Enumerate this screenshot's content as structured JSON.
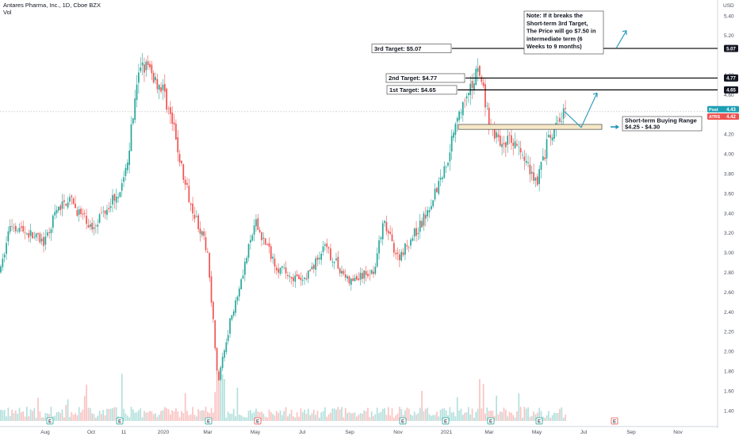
{
  "header": {
    "symbol_line": "Antares Pharma, Inc., 1D, Cboe BZX",
    "volume_label": "Vol",
    "currency": "USD"
  },
  "colors": {
    "up": "#26a69a",
    "down": "#ef5350",
    "line": "#000000",
    "accent": "#2196b8",
    "box_fill": "#f6e7c6",
    "post_tag": "#1e9fb4",
    "atrs_tag": "#ef5350"
  },
  "chart_data": {
    "type": "candlestick",
    "ylim": [
      1.33,
      5.42
    ],
    "y_ticks": [
      "5.40",
      "5.20",
      "5.07",
      "4.80",
      "4.77",
      "4.65",
      "4.60",
      "4.43",
      "4.42",
      "4.20",
      "4.00",
      "3.80",
      "3.60",
      "3.40",
      "3.20",
      "3.00",
      "2.80",
      "2.60",
      "2.40",
      "2.20",
      "2.00",
      "1.80",
      "1.60",
      "1.40"
    ],
    "x_ticks": [
      "Aug",
      "Oct",
      "11",
      "2020",
      "Mar",
      "May",
      "Jul",
      "Sep",
      "Nov",
      "2021",
      "Mar",
      "May",
      "Jul",
      "Sep",
      "Nov"
    ],
    "price_keypoints": [
      {
        "month": "Jul 2019",
        "price": 2.82
      },
      {
        "month": "Jul 2019",
        "price": 3.3
      },
      {
        "month": "Aug 2019",
        "price": 3.1
      },
      {
        "month": "Aug 2019",
        "price": 3.4
      },
      {
        "month": "Sep 2019",
        "price": 3.55
      },
      {
        "month": "Oct 2019",
        "price": 3.25
      },
      {
        "month": "Nov 2019",
        "price": 3.7
      },
      {
        "month": "Dec 2019",
        "price": 4.95
      },
      {
        "month": "Jan 2020",
        "price": 4.65
      },
      {
        "month": "Jan 2020",
        "price": 4.25
      },
      {
        "month": "Feb 2020",
        "price": 3.7
      },
      {
        "month": "Mar 2020",
        "price": 3.0
      },
      {
        "month": "Mar 2020",
        "price": 1.68
      },
      {
        "month": "Apr 2020",
        "price": 2.3
      },
      {
        "month": "May 2020",
        "price": 3.3
      },
      {
        "month": "Jun 2020",
        "price": 2.85
      },
      {
        "month": "Jul 2020",
        "price": 2.7
      },
      {
        "month": "Aug 2020",
        "price": 3.05
      },
      {
        "month": "Sep 2020",
        "price": 2.7
      },
      {
        "month": "Oct 2020",
        "price": 2.82
      },
      {
        "month": "Oct 2020",
        "price": 3.3
      },
      {
        "month": "Nov 2020",
        "price": 2.95
      },
      {
        "month": "Dec 2020",
        "price": 3.3
      },
      {
        "month": "Jan 2021",
        "price": 3.9
      },
      {
        "month": "Jan 2021",
        "price": 4.4
      },
      {
        "month": "Feb 2021",
        "price": 4.55
      },
      {
        "month": "Feb 2021",
        "price": 4.9
      },
      {
        "month": "Mar 2021",
        "price": 4.3
      },
      {
        "month": "Mar 2021",
        "price": 4.1
      },
      {
        "month": "Apr 2021",
        "price": 4.15
      },
      {
        "month": "May 2021",
        "price": 3.72
      },
      {
        "month": "May 2021",
        "price": 4.1
      },
      {
        "month": "Jun 2021",
        "price": 4.45
      }
    ],
    "levels": [
      {
        "label": "3rd Target: $5.07",
        "value": 5.07
      },
      {
        "label": "2nd Target: $4.77",
        "value": 4.77
      },
      {
        "label": "1st Target: $4.65",
        "value": 4.65
      }
    ],
    "buy_range": {
      "low": 4.25,
      "high": 4.3,
      "label_line1": "Short-term Buying Range",
      "label_line2": "$4.25 - $4.30"
    },
    "note_lines": [
      "Note: If it breaks the",
      "Short-term 3rd Target,",
      "The Price will go $7.50 in",
      "intermediate term (6",
      "Weeks to 9 months)"
    ],
    "price_tags": [
      {
        "label": "Post",
        "value": "4.43",
        "color": "#1e9fb4"
      },
      {
        "label": "ATRS",
        "value": "4.42",
        "color": "#ef5350"
      }
    ],
    "earnings_marker": "E"
  }
}
